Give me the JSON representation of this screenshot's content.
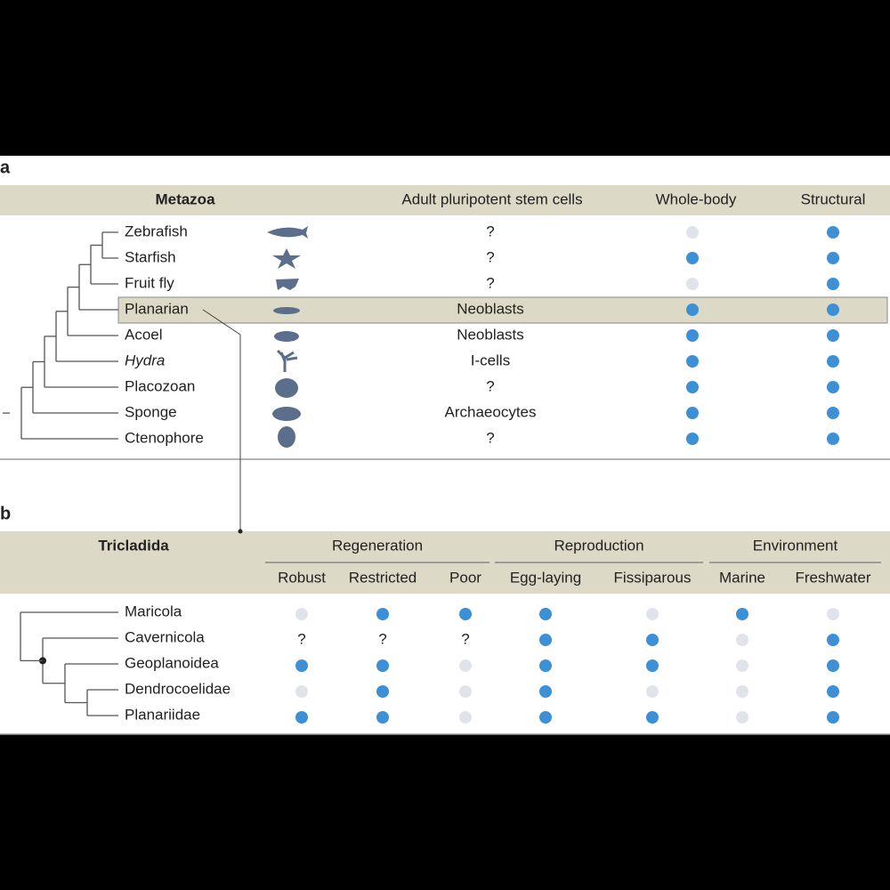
{
  "panel_a": {
    "label": "a",
    "headers": [
      "Metazoa",
      "Adult pluripotent stem cells",
      "Whole-body",
      "Structural"
    ],
    "rows": [
      {
        "name": "Zebrafish",
        "stem_cells": "?",
        "whole_body": false,
        "structural": true
      },
      {
        "name": "Starfish",
        "stem_cells": "?",
        "whole_body": true,
        "structural": true
      },
      {
        "name": "Fruit fly",
        "stem_cells": "?",
        "whole_body": false,
        "structural": true
      },
      {
        "name": "Planarian",
        "stem_cells": "Neoblasts",
        "whole_body": true,
        "structural": true,
        "highlighted": true
      },
      {
        "name": "Acoel",
        "stem_cells": "Neoblasts",
        "whole_body": true,
        "structural": true
      },
      {
        "name": "Hydra",
        "stem_cells": "I-cells",
        "whole_body": true,
        "structural": true,
        "italic": true
      },
      {
        "name": "Placozoan",
        "stem_cells": "?",
        "whole_body": true,
        "structural": true
      },
      {
        "name": "Sponge",
        "stem_cells": "Archaeocytes",
        "whole_body": true,
        "structural": true
      },
      {
        "name": "Ctenophore",
        "stem_cells": "?",
        "whole_body": true,
        "structural": true
      }
    ]
  },
  "panel_b": {
    "label": "b",
    "title": "Tricladida",
    "groups": [
      {
        "name": "Regeneration",
        "columns": [
          "Robust",
          "Restricted",
          "Poor"
        ]
      },
      {
        "name": "Reproduction",
        "columns": [
          "Egg-laying",
          "Fissiparous"
        ]
      },
      {
        "name": "Environment",
        "columns": [
          "Marine",
          "Freshwater"
        ]
      }
    ],
    "rows": [
      {
        "name": "Maricola",
        "cells": [
          false,
          true,
          true,
          true,
          false,
          true,
          false
        ]
      },
      {
        "name": "Cavernicola",
        "cells": [
          "?",
          "?",
          "?",
          true,
          true,
          false,
          true
        ]
      },
      {
        "name": "Geoplanoidea",
        "cells": [
          true,
          true,
          false,
          true,
          true,
          false,
          true
        ]
      },
      {
        "name": "Dendrocoelidae",
        "cells": [
          false,
          true,
          false,
          true,
          false,
          false,
          true
        ]
      },
      {
        "name": "Planariidae",
        "cells": [
          true,
          true,
          false,
          true,
          true,
          false,
          true
        ]
      }
    ]
  }
}
